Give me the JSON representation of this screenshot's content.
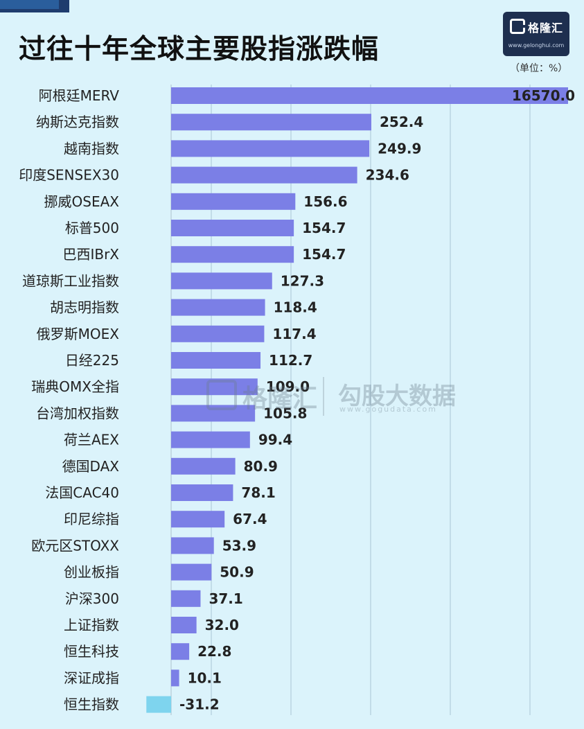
{
  "title": "过往十年全球主要股指涨跌幅",
  "unit_note": "（单位：%）",
  "logo": {
    "name": "格隆汇",
    "url": "www.gelonghui.com"
  },
  "watermark": {
    "left": "格隆汇",
    "right": "勾股大数据",
    "url": "www.gogudata.com"
  },
  "chart_data": {
    "type": "bar",
    "orientation": "horizontal",
    "title": "过往十年全球主要股指涨跌幅",
    "unit": "（单位：%）",
    "grid": true,
    "colors": {
      "positive": "#7b7fe6",
      "negative": "#7ed4ee",
      "background": "#dbf3fb"
    },
    "categories": [
      "阿根廷MERV",
      "纳斯达克指数",
      "越南指数",
      "印度SENSEX30",
      "挪威OSEAX",
      "标普500",
      "巴西IBrX",
      "道琼斯工业指数",
      "胡志明指数",
      "俄罗斯MOEX",
      "日经225",
      "瑞典OMX全指",
      "台湾加权指数",
      "荷兰AEX",
      "德国DAX",
      "法国CAC40",
      "印尼综指",
      "欧元区STOXX",
      "创业板指",
      "沪深300",
      "上证指数",
      "恒生科技",
      "深证成指",
      "恒生指数"
    ],
    "values": [
      16570.0,
      252.4,
      249.9,
      234.6,
      156.6,
      154.7,
      154.7,
      127.3,
      118.4,
      117.4,
      112.7,
      109.0,
      105.8,
      99.4,
      80.9,
      78.1,
      67.4,
      53.9,
      50.9,
      37.1,
      32.0,
      22.8,
      10.1,
      -31.2
    ],
    "value_labels": [
      "16570.0",
      "252.4",
      "249.9",
      "234.6",
      "156.6",
      "154.7",
      "154.7",
      "127.3",
      "118.4",
      "117.4",
      "112.7",
      "109.0",
      "105.8",
      "99.4",
      "80.9",
      "78.1",
      "67.4",
      "53.9",
      "50.9",
      "37.1",
      "32.0",
      "22.8",
      "10.1",
      "-31.2"
    ],
    "axis_break_note": "first bar truncated (broken axis)"
  }
}
